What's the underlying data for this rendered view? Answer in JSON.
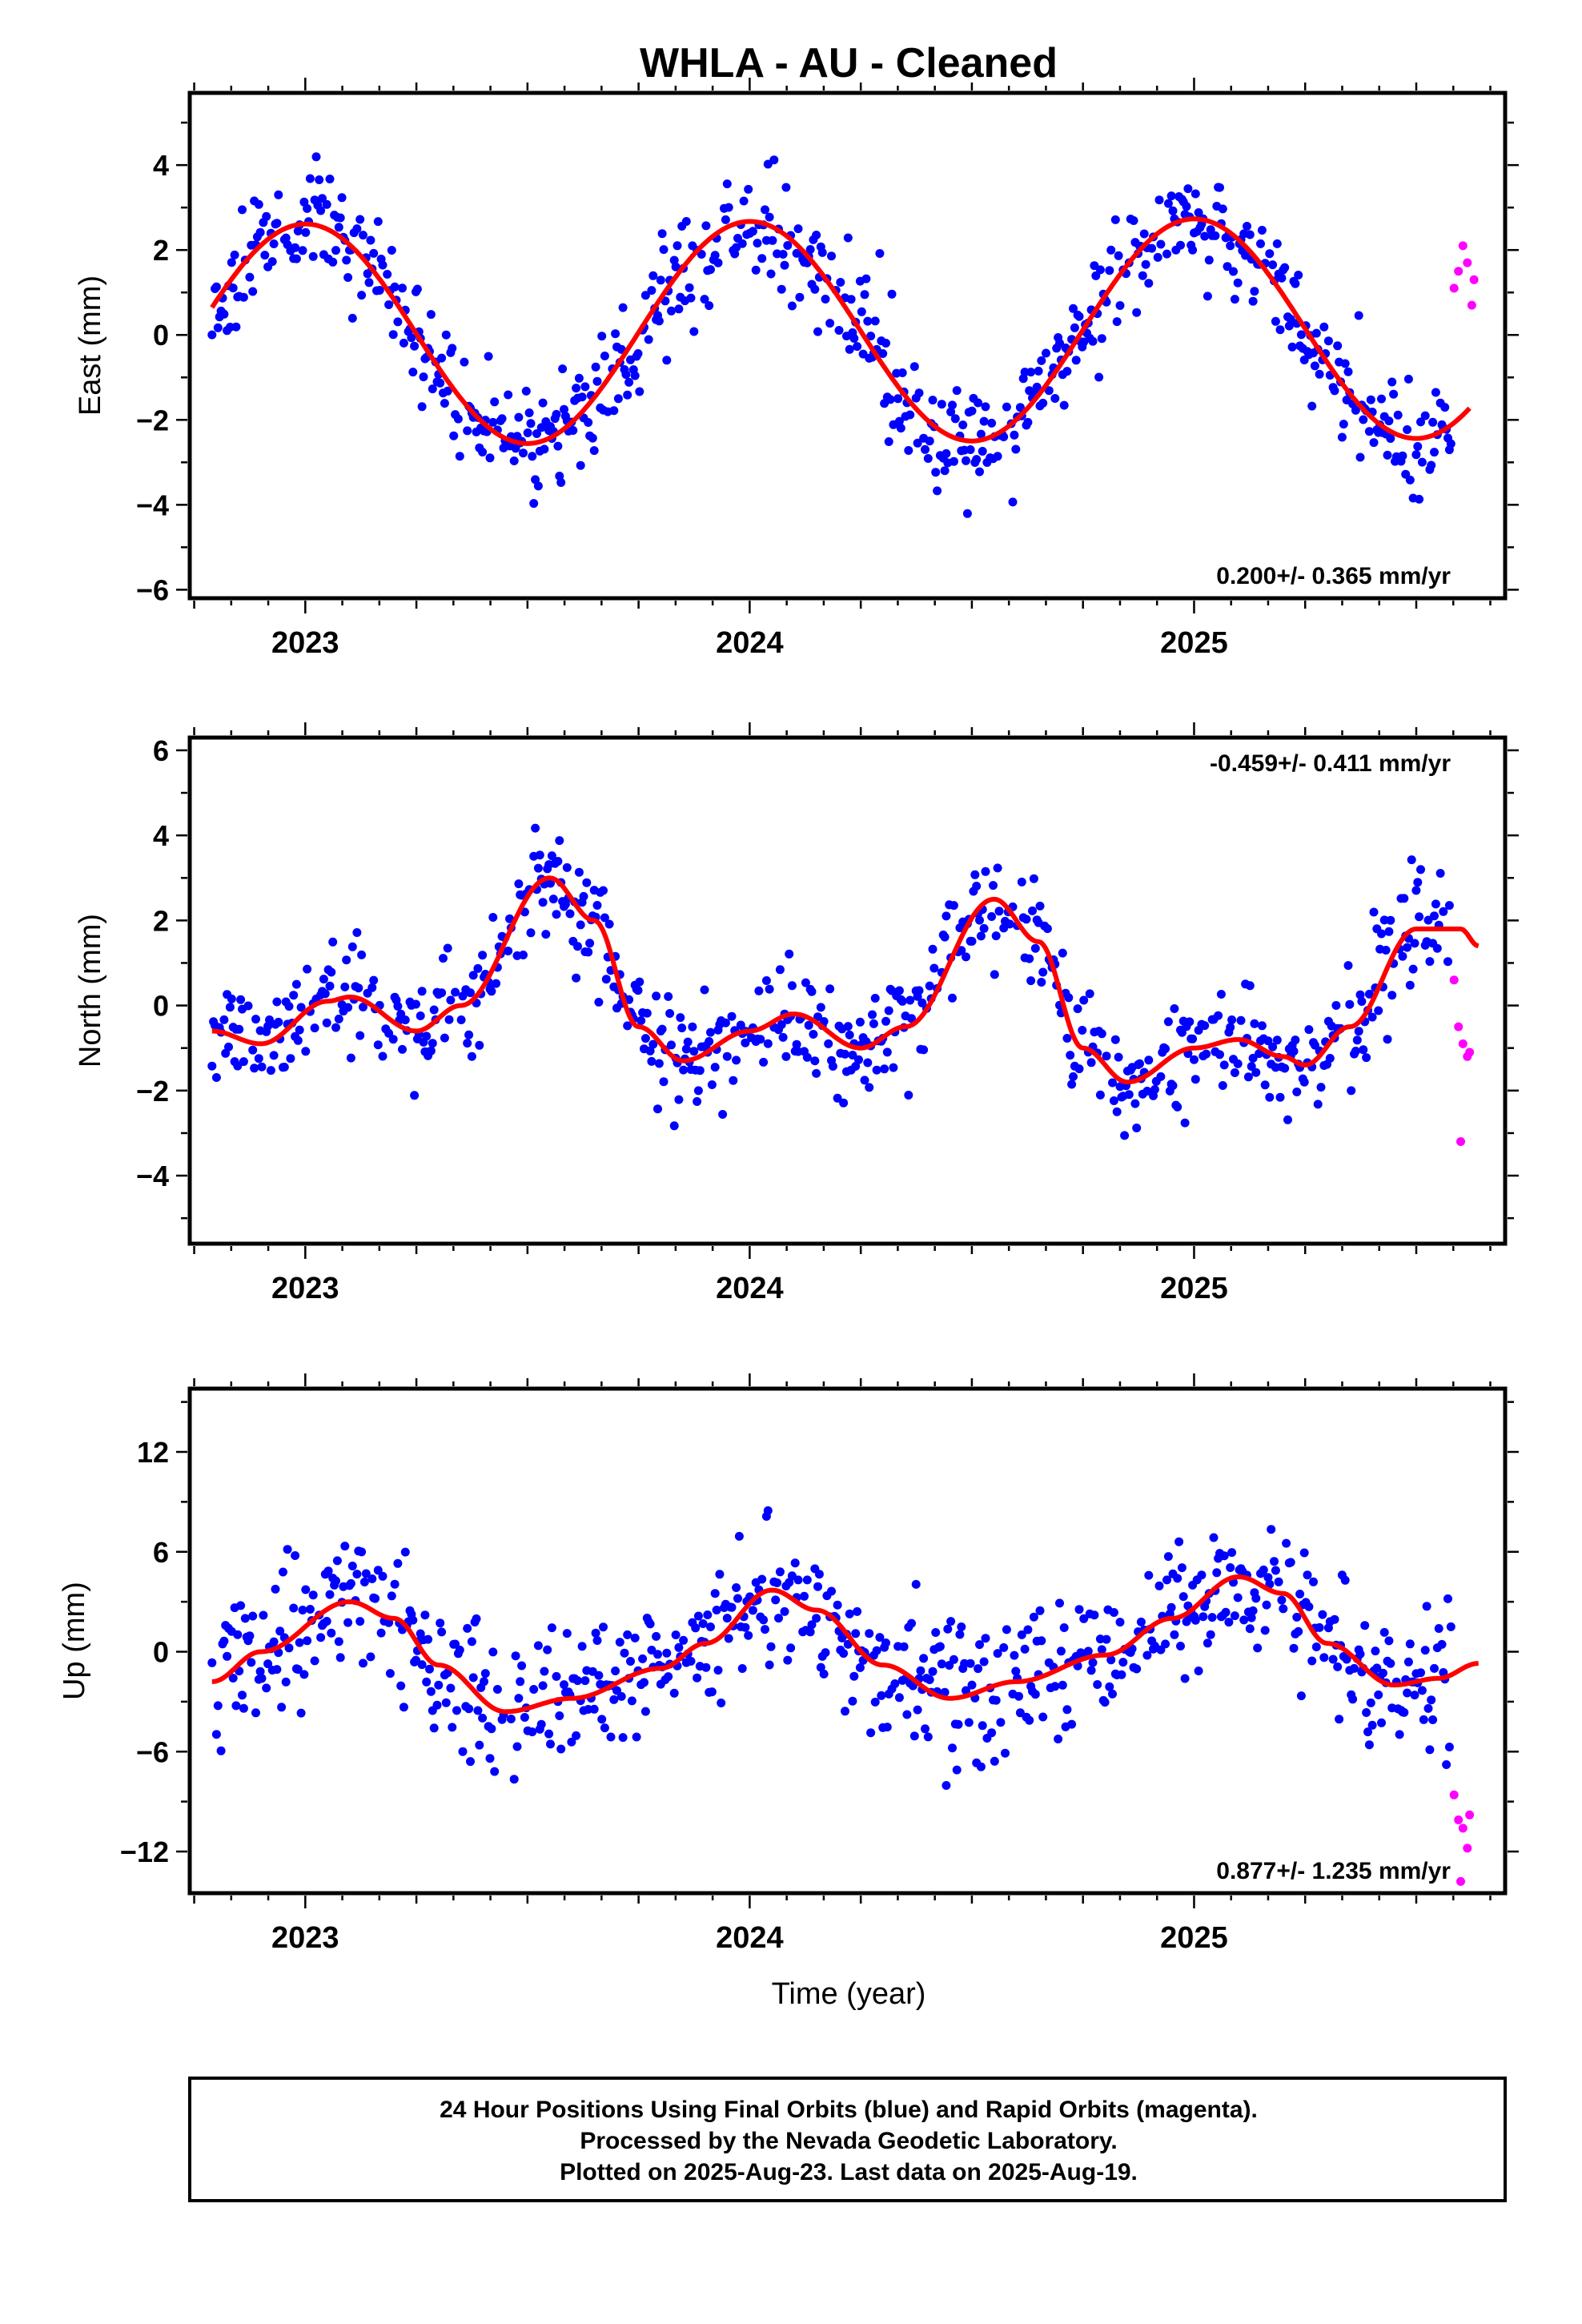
{
  "title": "WHLA  - AU - Cleaned",
  "xlabel": "Time (year)",
  "footer": {
    "line1": "24 Hour Positions Using Final Orbits (blue) and Rapid Orbits (magenta).",
    "line2": "Processed by the Nevada Geodetic Laboratory.",
    "line3": "Plotted on 2025-Aug-23. Last data on 2025-Aug-19."
  },
  "colors": {
    "final": "#0000ff",
    "rapid": "#ff00ff",
    "model": "#ff0000",
    "frame": "#000000"
  },
  "chart_data": [
    {
      "type": "scatter",
      "ylabel": "East (mm)",
      "rate_label": "0.200+/- 0.365 mm/yr",
      "xlim": [
        2022.74,
        2025.7
      ],
      "ylim": [
        -6.2,
        5.7
      ],
      "xticks": [
        2023,
        2024,
        2025
      ],
      "yticks": [
        -6,
        -4,
        -2,
        0,
        2,
        4
      ],
      "model": {
        "mean": 0,
        "amp": 2.6,
        "period_years": 1.0,
        "phase_peak": 2023.0,
        "trend": 0.06,
        "t_start": 2022.79,
        "t_end": 2025.62
      },
      "scatter_sigma": 0.9,
      "final_range": [
        2022.79,
        2025.58
      ],
      "rapid_points": [
        [
          2025.585,
          1.1
        ],
        [
          2025.595,
          1.5
        ],
        [
          2025.605,
          2.1
        ],
        [
          2025.615,
          1.7
        ],
        [
          2025.625,
          0.7
        ],
        [
          2025.63,
          1.3
        ]
      ],
      "seed": 11
    },
    {
      "type": "scatter",
      "ylabel": "North (mm)",
      "rate_label": "-0.459+/- 0.411 mm/yr",
      "xlim": [
        2022.74,
        2025.7
      ],
      "ylim": [
        -5.6,
        6.3
      ],
      "xticks": [
        2023,
        2024,
        2025
      ],
      "yticks": [
        -4,
        -2,
        0,
        2,
        4,
        6
      ],
      "model_points": [
        [
          2022.79,
          -0.6
        ],
        [
          2022.9,
          -0.9
        ],
        [
          2023.05,
          0.1
        ],
        [
          2023.1,
          0.2
        ],
        [
          2023.25,
          -0.6
        ],
        [
          2023.35,
          0.0
        ],
        [
          2023.55,
          3.0
        ],
        [
          2023.65,
          2.0
        ],
        [
          2023.75,
          -0.5
        ],
        [
          2023.85,
          -1.3
        ],
        [
          2024.0,
          -0.6
        ],
        [
          2024.1,
          -0.2
        ],
        [
          2024.25,
          -1.0
        ],
        [
          2024.35,
          -0.5
        ],
        [
          2024.55,
          2.5
        ],
        [
          2024.65,
          1.5
        ],
        [
          2024.75,
          -1.0
        ],
        [
          2024.85,
          -1.8
        ],
        [
          2025.0,
          -1.0
        ],
        [
          2025.1,
          -0.8
        ],
        [
          2025.2,
          -1.2
        ],
        [
          2025.25,
          -1.4
        ],
        [
          2025.35,
          -0.5
        ],
        [
          2025.5,
          1.8
        ],
        [
          2025.6,
          1.8
        ],
        [
          2025.64,
          1.4
        ]
      ],
      "scatter_sigma": 0.85,
      "final_range": [
        2022.79,
        2025.58
      ],
      "rapid_points": [
        [
          2025.585,
          0.6
        ],
        [
          2025.595,
          -0.5
        ],
        [
          2025.605,
          -0.9
        ],
        [
          2025.615,
          -1.2
        ],
        [
          2025.62,
          -1.1
        ],
        [
          2025.6,
          -3.2
        ]
      ],
      "seed": 23
    },
    {
      "type": "scatter",
      "ylabel": "Up (mm)",
      "rate_label": "0.877+/- 1.235 mm/yr",
      "xlim": [
        2022.74,
        2025.7
      ],
      "ylim": [
        -14.5,
        15.8
      ],
      "xticks": [
        2023,
        2024,
        2025
      ],
      "yticks": [
        -12,
        -6,
        0,
        6,
        12
      ],
      "model_points": [
        [
          2022.79,
          -1.8
        ],
        [
          2022.9,
          0.0
        ],
        [
          2023.1,
          3.0
        ],
        [
          2023.2,
          2.0
        ],
        [
          2023.3,
          -0.8
        ],
        [
          2023.45,
          -3.6
        ],
        [
          2023.6,
          -2.8
        ],
        [
          2023.8,
          -1.0
        ],
        [
          2023.9,
          0.5
        ],
        [
          2024.05,
          3.7
        ],
        [
          2024.15,
          2.5
        ],
        [
          2024.3,
          -0.8
        ],
        [
          2024.45,
          -2.8
        ],
        [
          2024.6,
          -1.8
        ],
        [
          2024.8,
          -0.2
        ],
        [
          2024.95,
          2.0
        ],
        [
          2025.1,
          4.5
        ],
        [
          2025.2,
          3.5
        ],
        [
          2025.3,
          0.5
        ],
        [
          2025.45,
          -2.0
        ],
        [
          2025.55,
          -1.6
        ],
        [
          2025.64,
          -0.7
        ]
      ],
      "scatter_sigma": 2.8,
      "final_range": [
        2022.79,
        2025.58
      ],
      "rapid_points": [
        [
          2025.585,
          -8.6
        ],
        [
          2025.595,
          -10.1
        ],
        [
          2025.605,
          -10.6
        ],
        [
          2025.615,
          -11.8
        ],
        [
          2025.6,
          -13.8
        ],
        [
          2025.62,
          -9.8
        ]
      ],
      "seed": 37
    }
  ]
}
